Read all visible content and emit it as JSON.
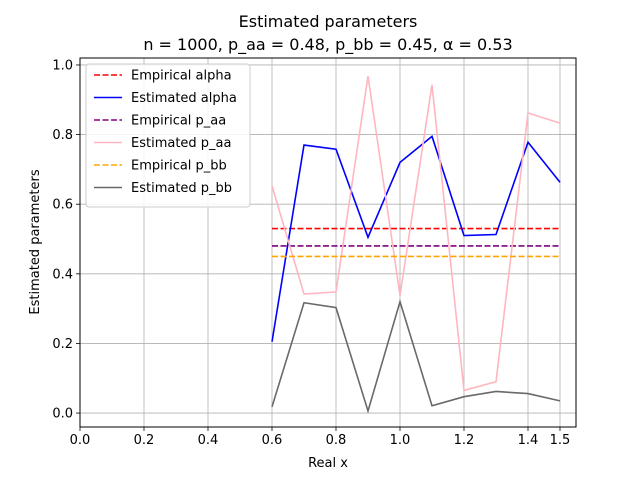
{
  "chart_data": {
    "type": "line",
    "title": "Estimated parameters",
    "subtitle": "n = 1000, p_aa = 0.48, p_bb = 0.45, α = 0.53",
    "xlabel": "Real x",
    "ylabel": "Estimated parameters",
    "xlim": [
      0.0,
      1.55
    ],
    "ylim": [
      -0.04,
      1.02
    ],
    "x_ticks": [
      0.0,
      0.2,
      0.4,
      0.6,
      0.8,
      1.0,
      1.2,
      1.4,
      1.5
    ],
    "x_tick_labels": [
      "0.0",
      "0.2",
      "0.4",
      "0.6",
      "0.8",
      "1.0",
      "1.2",
      "1.4",
      "1.5"
    ],
    "y_ticks": [
      0.0,
      0.2,
      0.4,
      0.6,
      0.8,
      1.0
    ],
    "y_tick_labels": [
      "0.0",
      "0.2",
      "0.4",
      "0.6",
      "0.8",
      "1.0"
    ],
    "grid": true,
    "legend_position": "top-left",
    "x": [
      0.6,
      0.7,
      0.8,
      0.9,
      1.0,
      1.1,
      1.2,
      1.3,
      1.4,
      1.5
    ],
    "series": [
      {
        "name": "Empirical alpha",
        "color": "#ff0000",
        "dashed": true,
        "values": [
          0.53,
          0.53,
          0.53,
          0.53,
          0.53,
          0.53,
          0.53,
          0.53,
          0.53,
          0.53
        ]
      },
      {
        "name": "Estimated alpha",
        "color": "#0000ff",
        "dashed": false,
        "values": [
          0.205,
          0.77,
          0.758,
          0.505,
          0.72,
          0.795,
          0.51,
          0.513,
          0.778,
          0.663
        ]
      },
      {
        "name": "Empirical p_aa",
        "color": "#800080",
        "dashed": true,
        "values": [
          0.48,
          0.48,
          0.48,
          0.48,
          0.48,
          0.48,
          0.48,
          0.48,
          0.48,
          0.48
        ]
      },
      {
        "name": "Estimated p_aa",
        "color": "#ffb6c1",
        "dashed": false,
        "values": [
          0.653,
          0.342,
          0.348,
          0.968,
          0.338,
          0.943,
          0.065,
          0.09,
          0.862,
          0.833
        ]
      },
      {
        "name": "Empirical p_bb",
        "color": "#ffa500",
        "dashed": true,
        "values": [
          0.45,
          0.45,
          0.45,
          0.45,
          0.45,
          0.45,
          0.45,
          0.45,
          0.45,
          0.45
        ]
      },
      {
        "name": "Estimated p_bb",
        "color": "#696969",
        "dashed": false,
        "values": [
          0.018,
          0.317,
          0.303,
          0.006,
          0.32,
          0.021,
          0.047,
          0.062,
          0.056,
          0.035
        ]
      }
    ]
  }
}
